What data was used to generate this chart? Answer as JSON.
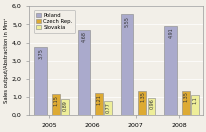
{
  "years": [
    "2005",
    "2006",
    "2007",
    "2008"
  ],
  "poland": [
    3.75,
    4.68,
    5.55,
    4.91
  ],
  "czech": [
    1.15,
    1.21,
    1.35,
    1.35
  ],
  "slovakia": [
    0.89,
    0.77,
    0.96,
    1.1
  ],
  "poland_labels": [
    "3,75",
    "4,68",
    "5,55",
    "4,91"
  ],
  "czech_labels": [
    "1,15",
    "1,21",
    "1,35",
    "1,35"
  ],
  "slovakia_labels": [
    "0,89",
    "0,77",
    "0,96",
    "1,1"
  ],
  "poland_color": "#aaaacc",
  "czech_color": "#ddaa33",
  "slovakia_color": "#eeee99",
  "ylabel": "Sales output/Abstraction in Mm³",
  "ylim": [
    0,
    6.0
  ],
  "yticks": [
    0.0,
    1.0,
    2.0,
    3.0,
    4.0,
    5.0,
    6.0
  ],
  "ytick_labels": [
    "0,0",
    "1,0",
    "2,0",
    "3,0",
    "4,0",
    "5,0",
    "6,0"
  ],
  "legend_labels": [
    "Poland",
    "Czech Rep.",
    "Slovakia"
  ],
  "poland_bar_width": 0.28,
  "small_bar_width": 0.18,
  "bg_color": "#f2efe8"
}
